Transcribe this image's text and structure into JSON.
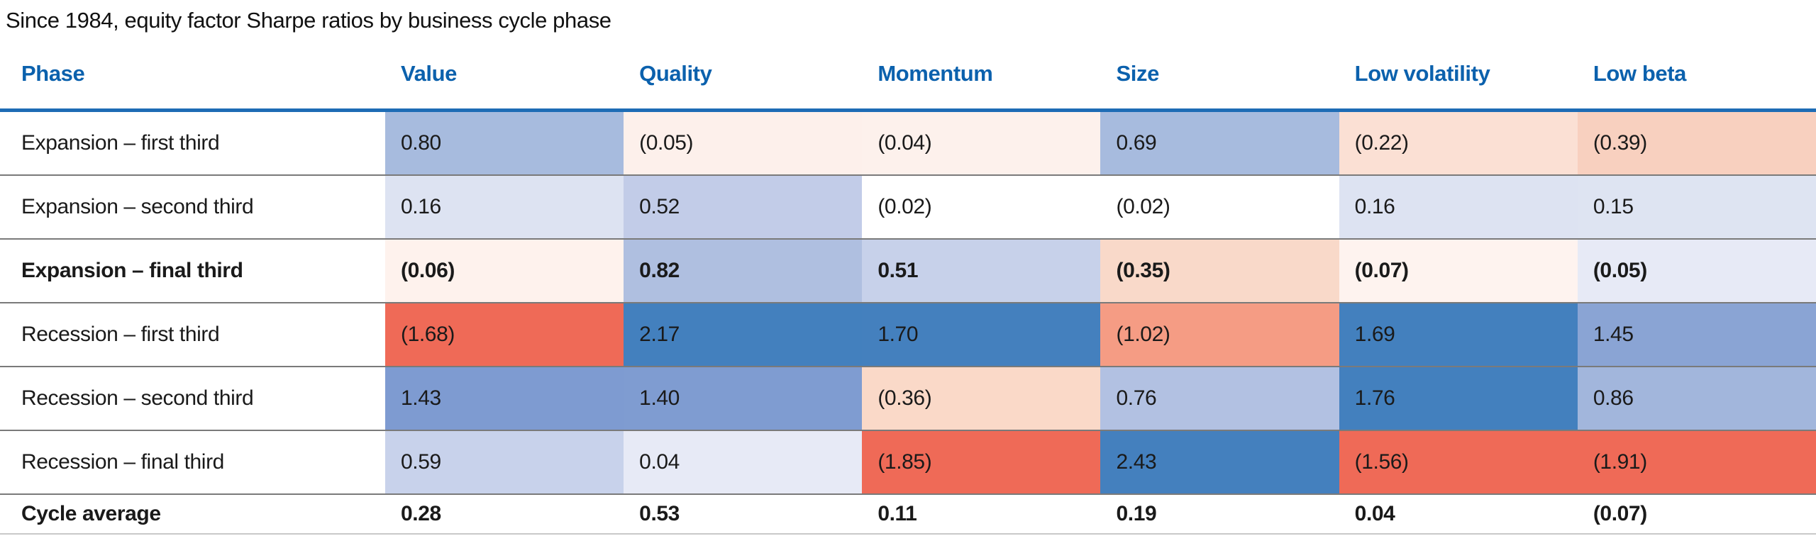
{
  "title": "Since 1984, equity factor Sharpe ratios by business cycle phase",
  "colors": {
    "header_text": "#0B61AD",
    "header_rule": "#1E6CB5",
    "row_rule": "#7A7A7A",
    "bottom_rule": "#C9C9C9",
    "strong_blue": "#4380BE",
    "strong_red": "#EF6A57"
  },
  "chart_data": {
    "type": "heatmap",
    "title": "Since 1984, equity factor Sharpe ratios by business cycle phase",
    "legend_position": "none",
    "grid": "horizontal-rules-only",
    "columns": [
      "Phase",
      "Value",
      "Quality",
      "Momentum",
      "Size",
      "Low volatility",
      "Low beta"
    ],
    "rows": [
      {
        "phase": "Expansion – first third",
        "bold": false,
        "cells": [
          {
            "text": "0.80",
            "value": 0.8,
            "bg": "#A7BBDE"
          },
          {
            "text": "(0.05)",
            "value": -0.05,
            "bg": "#FDF0EB"
          },
          {
            "text": "(0.04)",
            "value": -0.04,
            "bg": "#FDF1EC"
          },
          {
            "text": "0.69",
            "value": 0.69,
            "bg": "#A7BBDE"
          },
          {
            "text": "(0.22)",
            "value": -0.22,
            "bg": "#FBE0D4"
          },
          {
            "text": "(0.39)",
            "value": -0.39,
            "bg": "#F8D0BF"
          }
        ]
      },
      {
        "phase": "Expansion – second third",
        "bold": false,
        "cells": [
          {
            "text": "0.16",
            "value": 0.16,
            "bg": "#DDE3F2"
          },
          {
            "text": "0.52",
            "value": 0.52,
            "bg": "#C2CCE8"
          },
          {
            "text": "(0.02)",
            "value": -0.02,
            "bg": "#FFFFFF"
          },
          {
            "text": "(0.02)",
            "value": -0.02,
            "bg": "#FFFFFF"
          },
          {
            "text": "0.16",
            "value": 0.16,
            "bg": "#DDE3F2"
          },
          {
            "text": "0.15",
            "value": 0.15,
            "bg": "#DEE4F2"
          }
        ]
      },
      {
        "phase": "Expansion – final third",
        "bold": true,
        "cells": [
          {
            "text": "(0.06)",
            "value": -0.06,
            "bg": "#FEF2ED"
          },
          {
            "text": "0.82",
            "value": 0.82,
            "bg": "#AFBFE0"
          },
          {
            "text": "0.51",
            "value": 0.51,
            "bg": "#C7D1EA"
          },
          {
            "text": "(0.35)",
            "value": -0.35,
            "bg": "#F9D9C9"
          },
          {
            "text": "(0.07)",
            "value": -0.07,
            "bg": "#FEF3EF"
          },
          {
            "text": "(0.05)",
            "value": -0.05,
            "bg": "#E7EAF6"
          }
        ]
      },
      {
        "phase": "Recession – first third",
        "bold": false,
        "cells": [
          {
            "text": "(1.68)",
            "value": -1.68,
            "bg": "#EF6A57"
          },
          {
            "text": "2.17",
            "value": 2.17,
            "bg": "#4380BE"
          },
          {
            "text": "1.70",
            "value": 1.7,
            "bg": "#4480BE"
          },
          {
            "text": "(1.02)",
            "value": -1.02,
            "bg": "#F59C84"
          },
          {
            "text": "1.69",
            "value": 1.69,
            "bg": "#4380BE"
          },
          {
            "text": "1.45",
            "value": 1.45,
            "bg": "#8AA4D4"
          }
        ]
      },
      {
        "phase": "Recession – second third",
        "bold": false,
        "cells": [
          {
            "text": "1.43",
            "value": 1.43,
            "bg": "#7E9BD1"
          },
          {
            "text": "1.40",
            "value": 1.4,
            "bg": "#7F9CD1"
          },
          {
            "text": "(0.36)",
            "value": -0.36,
            "bg": "#FAD9C8"
          },
          {
            "text": "0.76",
            "value": 0.76,
            "bg": "#B2C1E2"
          },
          {
            "text": "1.76",
            "value": 1.76,
            "bg": "#4380BE"
          },
          {
            "text": "0.86",
            "value": 0.86,
            "bg": "#A2B6DC"
          }
        ]
      },
      {
        "phase": "Recession – final third",
        "bold": false,
        "cells": [
          {
            "text": "0.59",
            "value": 0.59,
            "bg": "#C8D2EB"
          },
          {
            "text": "0.04",
            "value": 0.04,
            "bg": "#E7EAF6"
          },
          {
            "text": "(1.85)",
            "value": -1.85,
            "bg": "#EF6A57"
          },
          {
            "text": "2.43",
            "value": 2.43,
            "bg": "#4480BE"
          },
          {
            "text": "(1.56)",
            "value": -1.56,
            "bg": "#EF6A57"
          },
          {
            "text": "(1.91)",
            "value": -1.91,
            "bg": "#EF6A57"
          }
        ]
      }
    ],
    "summary_row": {
      "phase": "Cycle average",
      "bold": true,
      "cells": [
        {
          "text": "0.28",
          "value": 0.28,
          "bg": "#FFFFFF"
        },
        {
          "text": "0.53",
          "value": 0.53,
          "bg": "#FFFFFF"
        },
        {
          "text": "0.11",
          "value": 0.11,
          "bg": "#FFFFFF"
        },
        {
          "text": "0.19",
          "value": 0.19,
          "bg": "#FFFFFF"
        },
        {
          "text": "0.04",
          "value": 0.04,
          "bg": "#FFFFFF"
        },
        {
          "text": "(0.07)",
          "value": -0.07,
          "bg": "#FFFFFF"
        }
      ]
    }
  }
}
